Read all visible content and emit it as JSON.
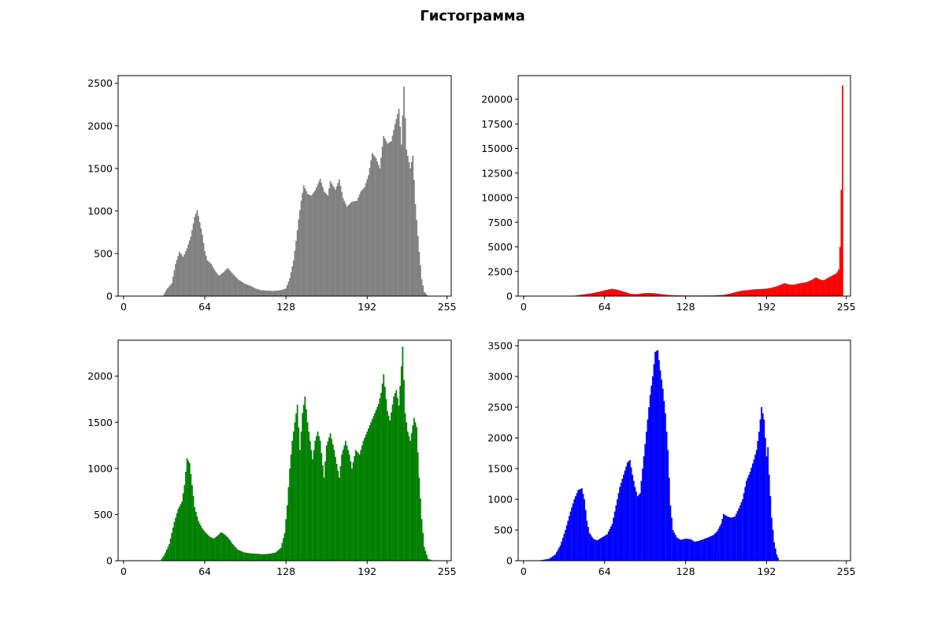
{
  "figure": {
    "title": "Гистограмма"
  },
  "chart_data": [
    {
      "type": "bar",
      "color": "#808080",
      "xlim": [
        -3.8,
        258.8
      ],
      "ylim": [
        0,
        2590
      ],
      "x_ticks": [
        0,
        64,
        128,
        192,
        255
      ],
      "y_ticks": [
        0,
        500,
        1000,
        1500,
        2000,
        2500
      ],
      "peaks": [
        [
          0,
          0
        ],
        [
          31,
          0
        ],
        [
          34,
          80
        ],
        [
          38,
          150
        ],
        [
          41,
          380
        ],
        [
          44,
          520
        ],
        [
          47,
          460
        ],
        [
          50,
          560
        ],
        [
          53,
          700
        ],
        [
          56,
          930
        ],
        [
          58,
          1010
        ],
        [
          60,
          870
        ],
        [
          62,
          720
        ],
        [
          64,
          530
        ],
        [
          66,
          420
        ],
        [
          69,
          380
        ],
        [
          72,
          300
        ],
        [
          75,
          240
        ],
        [
          78,
          270
        ],
        [
          82,
          330
        ],
        [
          85,
          280
        ],
        [
          90,
          200
        ],
        [
          95,
          150
        ],
        [
          100,
          120
        ],
        [
          104,
          90
        ],
        [
          108,
          70
        ],
        [
          112,
          65
        ],
        [
          118,
          60
        ],
        [
          124,
          70
        ],
        [
          128,
          90
        ],
        [
          131,
          210
        ],
        [
          134,
          420
        ],
        [
          136,
          650
        ],
        [
          138,
          900
        ],
        [
          140,
          1120
        ],
        [
          142,
          1300
        ],
        [
          145,
          1200
        ],
        [
          148,
          1180
        ],
        [
          151,
          1240
        ],
        [
          155,
          1380
        ],
        [
          158,
          1230
        ],
        [
          161,
          1180
        ],
        [
          163,
          1350
        ],
        [
          167,
          1250
        ],
        [
          170,
          1370
        ],
        [
          173,
          1150
        ],
        [
          176,
          1050
        ],
        [
          180,
          1110
        ],
        [
          184,
          1120
        ],
        [
          187,
          1230
        ],
        [
          190,
          1280
        ],
        [
          193,
          1420
        ],
        [
          196,
          1680
        ],
        [
          199,
          1620
        ],
        [
          202,
          1500
        ],
        [
          205,
          1880
        ],
        [
          208,
          1790
        ],
        [
          211,
          1820
        ],
        [
          214,
          2020
        ],
        [
          217,
          2200
        ],
        [
          219,
          1780
        ],
        [
          221,
          2460
        ],
        [
          223,
          1720
        ],
        [
          226,
          1500
        ],
        [
          228,
          1650
        ],
        [
          230,
          1080
        ],
        [
          233,
          520
        ],
        [
          235,
          200
        ],
        [
          237,
          50
        ],
        [
          240,
          0
        ],
        [
          255,
          0
        ]
      ]
    },
    {
      "type": "bar",
      "color": "#ff0000",
      "xlim": [
        -3.8,
        258.8
      ],
      "ylim": [
        0,
        22400
      ],
      "x_ticks": [
        0,
        64,
        128,
        192,
        255
      ],
      "y_ticks": [
        0,
        2500,
        5000,
        7500,
        10000,
        12500,
        15000,
        17500,
        20000
      ],
      "peaks": [
        [
          0,
          0
        ],
        [
          38,
          0
        ],
        [
          42,
          80
        ],
        [
          48,
          180
        ],
        [
          55,
          320
        ],
        [
          60,
          450
        ],
        [
          65,
          620
        ],
        [
          70,
          750
        ],
        [
          75,
          620
        ],
        [
          80,
          420
        ],
        [
          85,
          220
        ],
        [
          90,
          200
        ],
        [
          95,
          300
        ],
        [
          100,
          320
        ],
        [
          105,
          260
        ],
        [
          110,
          180
        ],
        [
          115,
          110
        ],
        [
          120,
          80
        ],
        [
          130,
          60
        ],
        [
          140,
          60
        ],
        [
          150,
          70
        ],
        [
          158,
          120
        ],
        [
          163,
          250
        ],
        [
          168,
          420
        ],
        [
          173,
          560
        ],
        [
          178,
          620
        ],
        [
          183,
          700
        ],
        [
          188,
          720
        ],
        [
          193,
          780
        ],
        [
          198,
          920
        ],
        [
          203,
          1150
        ],
        [
          206,
          1320
        ],
        [
          209,
          1200
        ],
        [
          213,
          1150
        ],
        [
          218,
          1300
        ],
        [
          223,
          1400
        ],
        [
          227,
          1600
        ],
        [
          231,
          1900
        ],
        [
          234,
          1700
        ],
        [
          237,
          1600
        ],
        [
          241,
          1900
        ],
        [
          244,
          2100
        ],
        [
          247,
          2300
        ],
        [
          249,
          2700
        ],
        [
          250,
          5000
        ],
        [
          251,
          10800
        ],
        [
          252,
          21400
        ],
        [
          253,
          0
        ],
        [
          255,
          0
        ]
      ]
    },
    {
      "type": "bar",
      "color": "#008000",
      "xlim": [
        -3.8,
        258.8
      ],
      "ylim": [
        0,
        2390
      ],
      "x_ticks": [
        0,
        64,
        128,
        192,
        255
      ],
      "y_ticks": [
        0,
        500,
        1000,
        1500,
        2000
      ],
      "peaks": [
        [
          0,
          0
        ],
        [
          29,
          0
        ],
        [
          32,
          60
        ],
        [
          36,
          180
        ],
        [
          40,
          420
        ],
        [
          43,
          560
        ],
        [
          46,
          640
        ],
        [
          48,
          820
        ],
        [
          50,
          1110
        ],
        [
          52,
          1060
        ],
        [
          54,
          820
        ],
        [
          56,
          580
        ],
        [
          59,
          430
        ],
        [
          62,
          350
        ],
        [
          65,
          300
        ],
        [
          68,
          260
        ],
        [
          71,
          240
        ],
        [
          74,
          270
        ],
        [
          77,
          310
        ],
        [
          80,
          280
        ],
        [
          83,
          240
        ],
        [
          86,
          180
        ],
        [
          90,
          120
        ],
        [
          95,
          90
        ],
        [
          100,
          80
        ],
        [
          105,
          75
        ],
        [
          110,
          70
        ],
        [
          115,
          75
        ],
        [
          120,
          90
        ],
        [
          124,
          140
        ],
        [
          127,
          300
        ],
        [
          129,
          600
        ],
        [
          131,
          1000
        ],
        [
          133,
          1300
        ],
        [
          135,
          1500
        ],
        [
          137,
          1690
        ],
        [
          139,
          1200
        ],
        [
          141,
          1600
        ],
        [
          143,
          1780
        ],
        [
          145,
          1500
        ],
        [
          147,
          1300
        ],
        [
          149,
          1100
        ],
        [
          151,
          1300
        ],
        [
          153,
          1400
        ],
        [
          155,
          1300
        ],
        [
          158,
          900
        ],
        [
          160,
          1250
        ],
        [
          163,
          1380
        ],
        [
          166,
          1200
        ],
        [
          168,
          1050
        ],
        [
          170,
          900
        ],
        [
          172,
          1150
        ],
        [
          175,
          1300
        ],
        [
          178,
          1150
        ],
        [
          180,
          1000
        ],
        [
          183,
          1200
        ],
        [
          186,
          1150
        ],
        [
          189,
          1300
        ],
        [
          192,
          1400
        ],
        [
          195,
          1500
        ],
        [
          198,
          1600
        ],
        [
          201,
          1700
        ],
        [
          203,
          1820
        ],
        [
          205,
          2020
        ],
        [
          208,
          1620
        ],
        [
          210,
          1520
        ],
        [
          213,
          1780
        ],
        [
          215,
          1850
        ],
        [
          217,
          1680
        ],
        [
          220,
          2320
        ],
        [
          222,
          1600
        ],
        [
          224,
          1400
        ],
        [
          226,
          1300
        ],
        [
          229,
          1550
        ],
        [
          231,
          1450
        ],
        [
          233,
          900
        ],
        [
          235,
          450
        ],
        [
          237,
          150
        ],
        [
          240,
          20
        ],
        [
          244,
          0
        ],
        [
          255,
          0
        ]
      ]
    },
    {
      "type": "bar",
      "color": "#0000ff",
      "xlim": [
        -3.8,
        258.8
      ],
      "ylim": [
        0,
        3590
      ],
      "x_ticks": [
        0,
        64,
        128,
        192,
        255
      ],
      "y_ticks": [
        0,
        500,
        1000,
        1500,
        2000,
        2500,
        3000,
        3500
      ],
      "peaks": [
        [
          0,
          0
        ],
        [
          10,
          0
        ],
        [
          14,
          10
        ],
        [
          20,
          30
        ],
        [
          25,
          100
        ],
        [
          29,
          250
        ],
        [
          33,
          500
        ],
        [
          37,
          800
        ],
        [
          40,
          1000
        ],
        [
          43,
          1150
        ],
        [
          46,
          1180
        ],
        [
          48,
          1000
        ],
        [
          50,
          650
        ],
        [
          52,
          450
        ],
        [
          55,
          360
        ],
        [
          58,
          330
        ],
        [
          62,
          380
        ],
        [
          66,
          430
        ],
        [
          70,
          600
        ],
        [
          73,
          900
        ],
        [
          76,
          1200
        ],
        [
          79,
          1400
        ],
        [
          82,
          1600
        ],
        [
          84,
          1640
        ],
        [
          86,
          1400
        ],
        [
          88,
          1200
        ],
        [
          90,
          1050
        ],
        [
          92,
          1100
        ],
        [
          94,
          1500
        ],
        [
          96,
          1900
        ],
        [
          98,
          2300
        ],
        [
          100,
          2700
        ],
        [
          102,
          3000
        ],
        [
          104,
          3400
        ],
        [
          106,
          3430
        ],
        [
          108,
          3100
        ],
        [
          110,
          2800
        ],
        [
          112,
          2400
        ],
        [
          114,
          1800
        ],
        [
          116,
          900
        ],
        [
          118,
          500
        ],
        [
          121,
          380
        ],
        [
          124,
          340
        ],
        [
          128,
          360
        ],
        [
          132,
          350
        ],
        [
          135,
          310
        ],
        [
          138,
          320
        ],
        [
          142,
          350
        ],
        [
          146,
          380
        ],
        [
          150,
          420
        ],
        [
          153,
          480
        ],
        [
          156,
          600
        ],
        [
          158,
          760
        ],
        [
          161,
          720
        ],
        [
          164,
          700
        ],
        [
          167,
          720
        ],
        [
          170,
          850
        ],
        [
          173,
          1000
        ],
        [
          176,
          1300
        ],
        [
          179,
          1450
        ],
        [
          182,
          1650
        ],
        [
          184,
          1800
        ],
        [
          186,
          2100
        ],
        [
          188,
          2500
        ],
        [
          190,
          2300
        ],
        [
          192,
          1700
        ],
        [
          193,
          1850
        ],
        [
          194,
          1400
        ],
        [
          196,
          700
        ],
        [
          198,
          300
        ],
        [
          200,
          100
        ],
        [
          202,
          0
        ],
        [
          255,
          0
        ]
      ]
    }
  ]
}
